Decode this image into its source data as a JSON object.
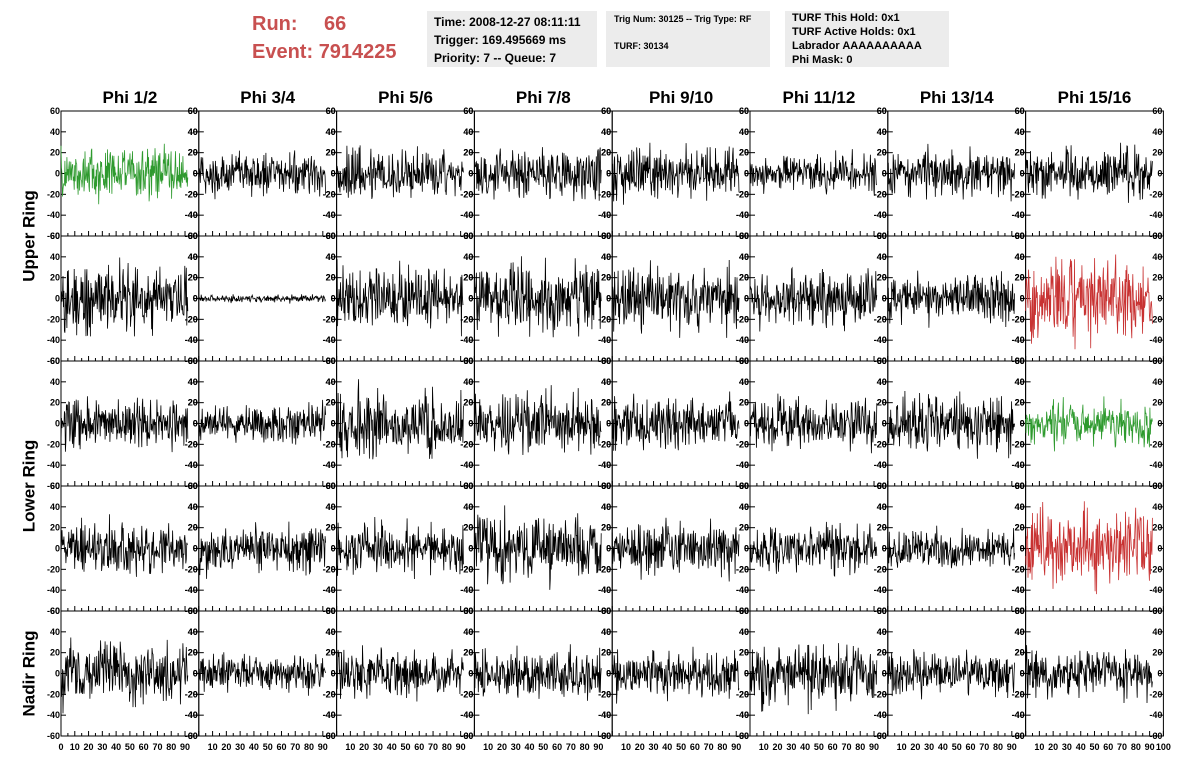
{
  "header": {
    "run_label": "Run:",
    "run_value": "66",
    "event_label": "Event:",
    "event_value": "7914225"
  },
  "panel_time": {
    "time": "Time: 2008-12-27 08:11:11",
    "trigger": "Trigger: 169.495669 ms",
    "priority": "Priority: 7 -- Queue: 7"
  },
  "panel_trig": {
    "trig": "Trig Num: 30125 -- Trig Type: RF",
    "turf": "TURF: 30134"
  },
  "panel_turf": {
    "this_hold": "TURF This Hold: 0x1",
    "active_holds": "TURF Active Holds: 0x1",
    "labrador": "Labrador AAAAAAAAAA",
    "phi_mask": "Phi Mask: 0"
  },
  "chart_data": {
    "type": "line",
    "columns": [
      "Phi 1/2",
      "Phi 3/4",
      "Phi 5/6",
      "Phi 7/8",
      "Phi 9/10",
      "Phi 11/12",
      "Phi 13/14",
      "Phi 15/16"
    ],
    "ring_labels": [
      {
        "label": "Upper Ring",
        "rows": [
          0,
          1
        ]
      },
      {
        "label": "Lower Ring",
        "rows": [
          2,
          3
        ]
      },
      {
        "label": "Nadir Ring",
        "rows": [
          4,
          4
        ]
      }
    ],
    "xlim": [
      0,
      100
    ],
    "ylim": [
      -60,
      60
    ],
    "x_ticks": [
      "0",
      "10",
      "20",
      "30",
      "40",
      "50",
      "60",
      "70",
      "80",
      "90",
      "100"
    ],
    "y_ticks": [
      "60",
      "40",
      "20",
      "0",
      "-20",
      "-40",
      "-60"
    ],
    "y_tick_values": [
      60,
      40,
      20,
      0,
      -20,
      -40,
      -60
    ],
    "trace_x_range": [
      0,
      92
    ],
    "trace_points": 260,
    "colors": {
      "normal": "#000000",
      "green": "#2e9a2e",
      "red": "#c83232"
    },
    "traces": [
      [
        {
          "amp": 10,
          "color": "green"
        },
        {
          "amp": 8,
          "color": "normal"
        },
        {
          "amp": 10,
          "color": "normal"
        },
        {
          "amp": 10,
          "color": "normal"
        },
        {
          "amp": 10,
          "color": "normal"
        },
        {
          "amp": 7,
          "color": "normal"
        },
        {
          "amp": 9,
          "color": "normal"
        },
        {
          "amp": 9,
          "color": "normal"
        }
      ],
      [
        {
          "amp": 13,
          "color": "normal"
        },
        {
          "amp": 1.5,
          "color": "normal"
        },
        {
          "amp": 12,
          "color": "normal"
        },
        {
          "amp": 13,
          "color": "normal"
        },
        {
          "amp": 12,
          "color": "normal"
        },
        {
          "amp": 11,
          "color": "normal"
        },
        {
          "amp": 9,
          "color": "normal"
        },
        {
          "amp": 15,
          "color": "red"
        }
      ],
      [
        {
          "amp": 10,
          "color": "normal"
        },
        {
          "amp": 7,
          "color": "normal"
        },
        {
          "amp": 12,
          "color": "normal"
        },
        {
          "amp": 11,
          "color": "normal"
        },
        {
          "amp": 10,
          "color": "normal"
        },
        {
          "amp": 9,
          "color": "normal"
        },
        {
          "amp": 12,
          "color": "normal"
        },
        {
          "amp": 8,
          "color": "green"
        }
      ],
      [
        {
          "amp": 10,
          "color": "normal"
        },
        {
          "amp": 9,
          "color": "normal"
        },
        {
          "amp": 10,
          "color": "normal"
        },
        {
          "amp": 13,
          "color": "normal"
        },
        {
          "amp": 10,
          "color": "normal"
        },
        {
          "amp": 9,
          "color": "normal"
        },
        {
          "amp": 8,
          "color": "normal"
        },
        {
          "amp": 14,
          "color": "red"
        }
      ],
      [
        {
          "amp": 12,
          "color": "normal"
        },
        {
          "amp": 7,
          "color": "normal"
        },
        {
          "amp": 9,
          "color": "normal"
        },
        {
          "amp": 9,
          "color": "normal"
        },
        {
          "amp": 9,
          "color": "normal"
        },
        {
          "amp": 12,
          "color": "normal"
        },
        {
          "amp": 8,
          "color": "normal"
        },
        {
          "amp": 9,
          "color": "normal"
        }
      ]
    ]
  }
}
